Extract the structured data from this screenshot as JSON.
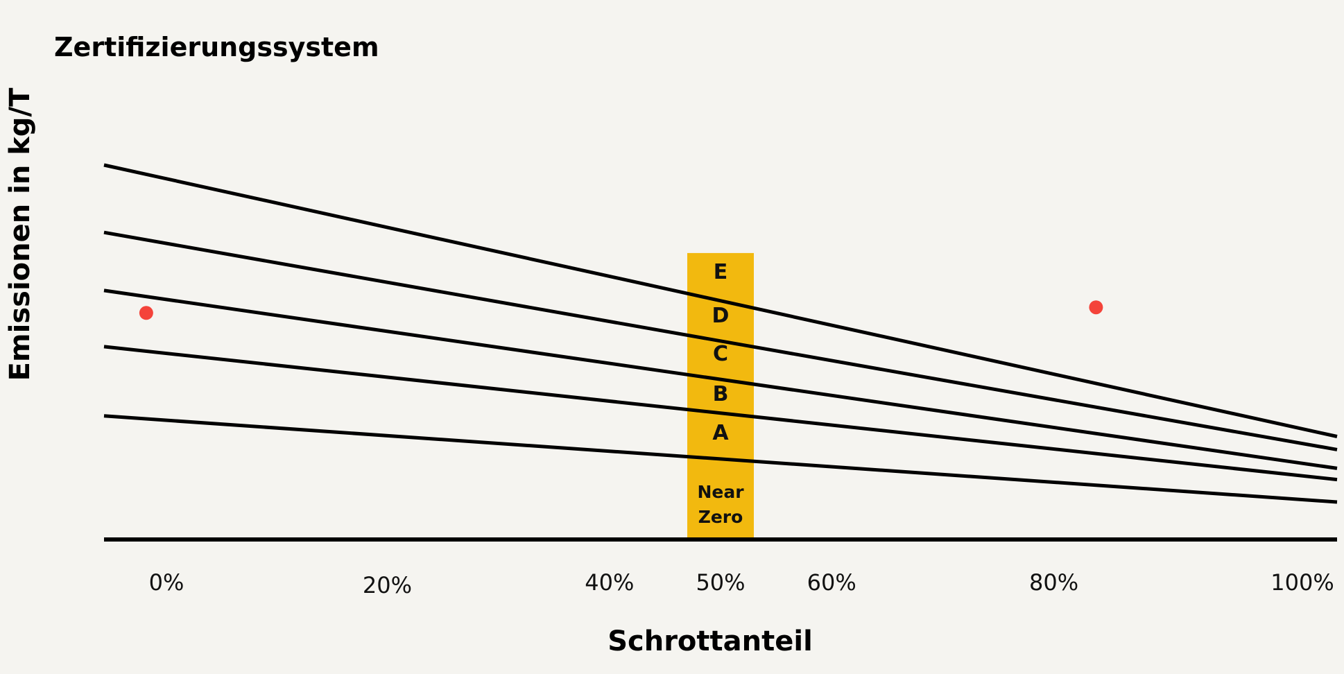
{
  "chart_data": {
    "type": "line",
    "title": "Zertifizierungssystem",
    "xlabel": "Schrottanteil",
    "ylabel": "Emissionen in kg/T",
    "x_tick_labels": [
      {
        "value": 0,
        "label": "0%"
      },
      {
        "value": 20,
        "label": "20%"
      },
      {
        "value": 40,
        "label": "40%"
      },
      {
        "value": 50,
        "label": "50%"
      },
      {
        "value": 60,
        "label": "60%"
      },
      {
        "value": 80,
        "label": "80%"
      },
      {
        "value": 100,
        "label": "100%"
      }
    ],
    "xlim": [
      -5.5,
      105.5
    ],
    "ylim": [
      0,
      100
    ],
    "grid": false,
    "series": [
      {
        "x": [
          -5.5,
          105.5
        ],
        "y": [
          100,
          27.5
        ]
      },
      {
        "x": [
          -5.5,
          105.5
        ],
        "y": [
          82,
          24
        ]
      },
      {
        "x": [
          -5.5,
          105.5
        ],
        "y": [
          66.5,
          19
        ]
      },
      {
        "x": [
          -5.5,
          105.5
        ],
        "y": [
          51.5,
          16
        ]
      },
      {
        "x": [
          -5.5,
          105.5
        ],
        "y": [
          33,
          10
        ]
      }
    ],
    "points": [
      {
        "x": -1.7,
        "y": 60.5
      },
      {
        "x": 83.8,
        "y": 62
      }
    ],
    "band": {
      "x_center": 50,
      "y_range": [
        0,
        76.5
      ],
      "color": "#f2b90f",
      "labels": [
        "E",
        "D",
        "C",
        "B",
        "A",
        "Near Zero"
      ]
    },
    "colors": {
      "line": "#000000",
      "point": "#f4433a",
      "background": "#f5f4f0"
    }
  }
}
